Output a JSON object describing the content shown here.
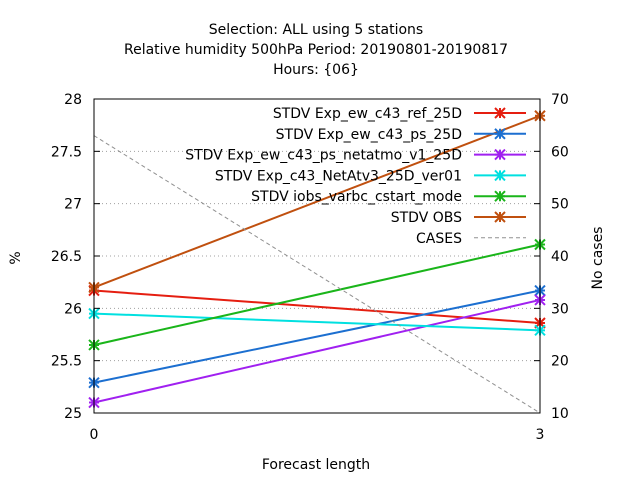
{
  "chart_data": {
    "type": "line",
    "title_lines": [
      "Selection: ALL using     5 stations",
      "Relative humidity 500hPa   Period: 20190801-20190817",
      "Hours: {06}"
    ],
    "xlabel": "Forecast length",
    "ylabel": "%",
    "y2label": "No cases",
    "x": [
      0,
      3
    ],
    "xticks": [
      "0",
      "3"
    ],
    "ylim": [
      25,
      28
    ],
    "yticks": [
      "25",
      "25.5",
      "26",
      "26.5",
      "27",
      "27.5",
      "28"
    ],
    "y2lim": [
      10,
      70
    ],
    "y2ticks": [
      "10",
      "20",
      "30",
      "40",
      "50",
      "60",
      "70"
    ],
    "grid": true,
    "legend_position": "top-right",
    "series": [
      {
        "name": "STDV Exp_ew_c43_ref_25D",
        "color": "#e51e10",
        "marker": "x-star",
        "values": [
          26.17,
          25.86
        ]
      },
      {
        "name": "STDV Exp_ew_c43_ps_25D",
        "color": "#1c6fd0",
        "marker": "x-star",
        "values": [
          25.29,
          26.17
        ]
      },
      {
        "name": "STDV Exp_ew_c43_ps_netatmo_v1_25D",
        "color": "#a020f0",
        "marker": "x-star",
        "values": [
          25.1,
          26.08
        ]
      },
      {
        "name": "STDV Exp_c43_NetAtv3_25D_ver01",
        "color": "#00e0e0",
        "marker": "x-star",
        "values": [
          25.95,
          25.79
        ]
      },
      {
        "name": "STDV iobs_varbc_cstart_mode",
        "color": "#1ab51a",
        "marker": "x-star",
        "values": [
          25.65,
          26.61
        ]
      },
      {
        "name": "STDV OBS",
        "color": "#c0500f",
        "marker": "x-star",
        "values": [
          26.2,
          27.84
        ]
      },
      {
        "name": "CASES",
        "color": "#909090",
        "marker": "none",
        "dashed": true,
        "axis": "y2",
        "values": [
          63,
          10
        ]
      }
    ]
  }
}
